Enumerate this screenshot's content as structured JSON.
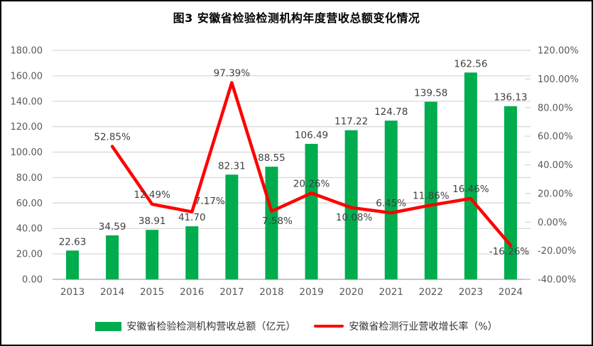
{
  "chart_data": {
    "type": "combo",
    "title": "图3 安徽省检验检测机构年度营收总额变化情况",
    "categories": [
      "2013",
      "2014",
      "2015",
      "2016",
      "2017",
      "2018",
      "2019",
      "2020",
      "2021",
      "2022",
      "2023",
      "2024"
    ],
    "series": [
      {
        "name": "安徽省检验检测机构营收总额（亿元）",
        "type": "bar",
        "axis": "left",
        "color": "#00AC4E",
        "values": [
          22.63,
          34.59,
          38.91,
          41.7,
          82.31,
          88.55,
          106.49,
          117.22,
          124.78,
          139.58,
          162.56,
          136.13
        ],
        "labels": [
          "22.63",
          "34.59",
          "38.91",
          "41.70",
          "82.31",
          "88.55",
          "106.49",
          "117.22",
          "124.78",
          "139.58",
          "162.56",
          "136.13"
        ]
      },
      {
        "name": "安徽省检测行业营收增长率（%）",
        "type": "line",
        "axis": "right",
        "color": "#FF0000",
        "values": [
          null,
          52.85,
          12.49,
          7.17,
          97.39,
          7.58,
          20.26,
          10.08,
          6.45,
          11.86,
          16.46,
          -16.26
        ],
        "labels": [
          null,
          "52.85%",
          "12.49%",
          "7.17%",
          "97.39%",
          "7.58%",
          "20.26%",
          "10.08%",
          "6.45%",
          "11.86%",
          "16.46%",
          "-16.26%"
        ]
      }
    ],
    "left_axis": {
      "min": 0,
      "max": 180,
      "step": 20,
      "tick_labels": [
        "0.00",
        "20.00",
        "40.00",
        "60.00",
        "80.00",
        "100.00",
        "120.00",
        "140.00",
        "160.00",
        "180.00"
      ]
    },
    "right_axis": {
      "min": -40,
      "max": 120,
      "step": 20,
      "tick_labels": [
        "-40.00%",
        "-20.00%",
        "0.00%",
        "20.00%",
        "40.00%",
        "60.00%",
        "80.00%",
        "100.00%",
        "120.00%"
      ]
    },
    "grid": true,
    "legend_position": "bottom",
    "colors": {
      "grid": "#D9D9D9",
      "axis_line": "#C6C6C6",
      "axis_text": "#595959",
      "data_label_text": "#404040",
      "background": "#FFFFFF",
      "border": "#000000"
    }
  }
}
